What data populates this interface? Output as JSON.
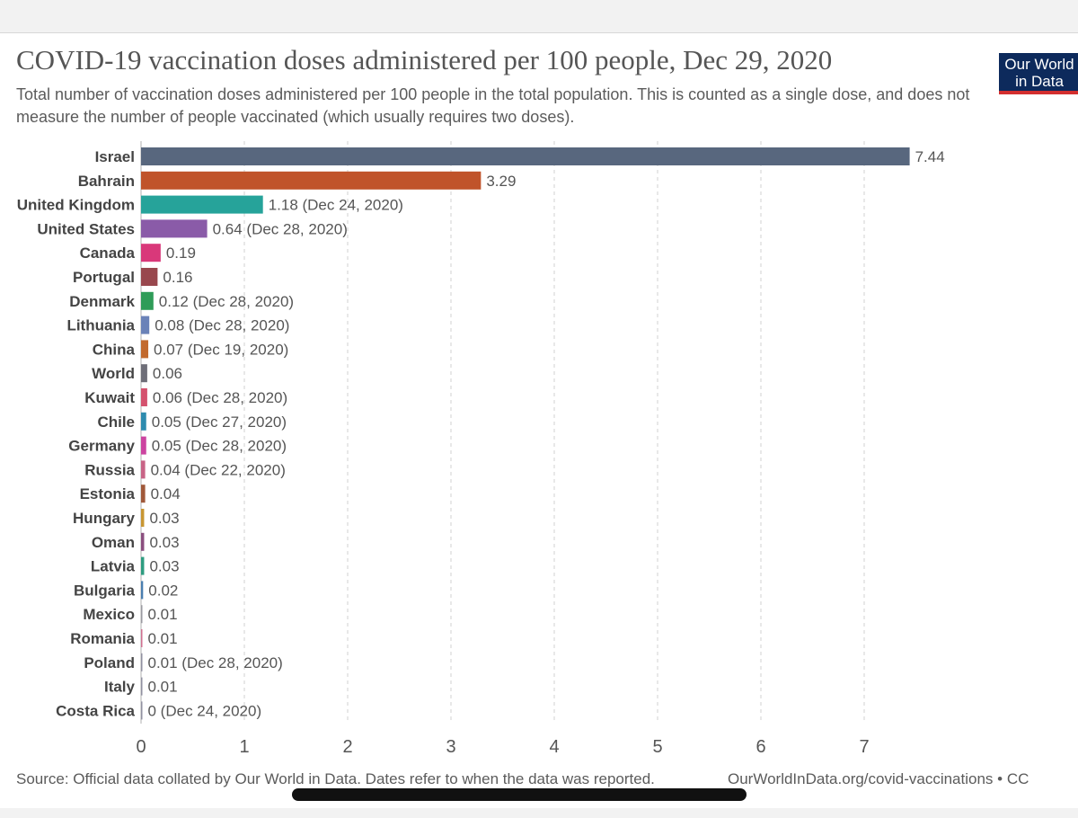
{
  "header": {
    "title": "COVID-19 vaccination doses administered per 100 people, Dec 29, 2020",
    "subtitle": "Total number of vaccination doses administered per 100 people in the total population. This is counted as a single dose, and does not measure the number of people vaccinated (which usually requires two doses).",
    "logo_line1": "Our World",
    "logo_line2": "in Data"
  },
  "footer": {
    "source": "Source: Official data collated by Our World in Data. Dates refer to when the data was reported.",
    "url": "OurWorldInData.org/covid-vaccinations • CC"
  },
  "chart_data": {
    "type": "bar",
    "orientation": "horizontal",
    "title": "COVID-19 vaccination doses administered per 100 people, Dec 29, 2020",
    "xlabel": "",
    "ylabel": "",
    "xlim": [
      0,
      7.5
    ],
    "xticks": [
      0,
      1,
      2,
      3,
      4,
      5,
      6,
      7
    ],
    "grid": true,
    "categories": [
      "Israel",
      "Bahrain",
      "United Kingdom",
      "United States",
      "Canada",
      "Portugal",
      "Denmark",
      "Lithuania",
      "China",
      "World",
      "Kuwait",
      "Chile",
      "Germany",
      "Russia",
      "Estonia",
      "Hungary",
      "Oman",
      "Latvia",
      "Bulgaria",
      "Mexico",
      "Romania",
      "Poland",
      "Italy",
      "Costa Rica"
    ],
    "values": [
      7.44,
      3.29,
      1.18,
      0.64,
      0.19,
      0.16,
      0.12,
      0.08,
      0.07,
      0.06,
      0.06,
      0.05,
      0.05,
      0.04,
      0.04,
      0.03,
      0.03,
      0.03,
      0.02,
      0.01,
      0.01,
      0.01,
      0.01,
      0
    ],
    "labels": [
      "7.44",
      "3.29",
      "1.18 (Dec 24, 2020)",
      "0.64 (Dec 28, 2020)",
      "0.19",
      "0.16",
      "0.12 (Dec 28, 2020)",
      "0.08 (Dec 28, 2020)",
      "0.07 (Dec 19, 2020)",
      "0.06",
      "0.06 (Dec 28, 2020)",
      "0.05 (Dec 27, 2020)",
      "0.05 (Dec 28, 2020)",
      "0.04 (Dec 22, 2020)",
      "0.04",
      "0.03",
      "0.03",
      "0.03",
      "0.02",
      "0.01",
      "0.01",
      "0.01 (Dec 28, 2020)",
      "0.01",
      "0 (Dec 24, 2020)"
    ],
    "colors": [
      "#58677e",
      "#c0532a",
      "#26a39a",
      "#8a5ba8",
      "#d9387a",
      "#98474d",
      "#2f9c58",
      "#6a82b8",
      "#c26a2e",
      "#6e6e78",
      "#d4526e",
      "#2e8bae",
      "#cc44a0",
      "#c86486",
      "#a0583a",
      "#c89632",
      "#8a4e7e",
      "#2e9c80",
      "#4a7eb0",
      "#9a9aa0",
      "#d07090",
      "#9090a0",
      "#9090a0",
      "#9090a0"
    ]
  }
}
